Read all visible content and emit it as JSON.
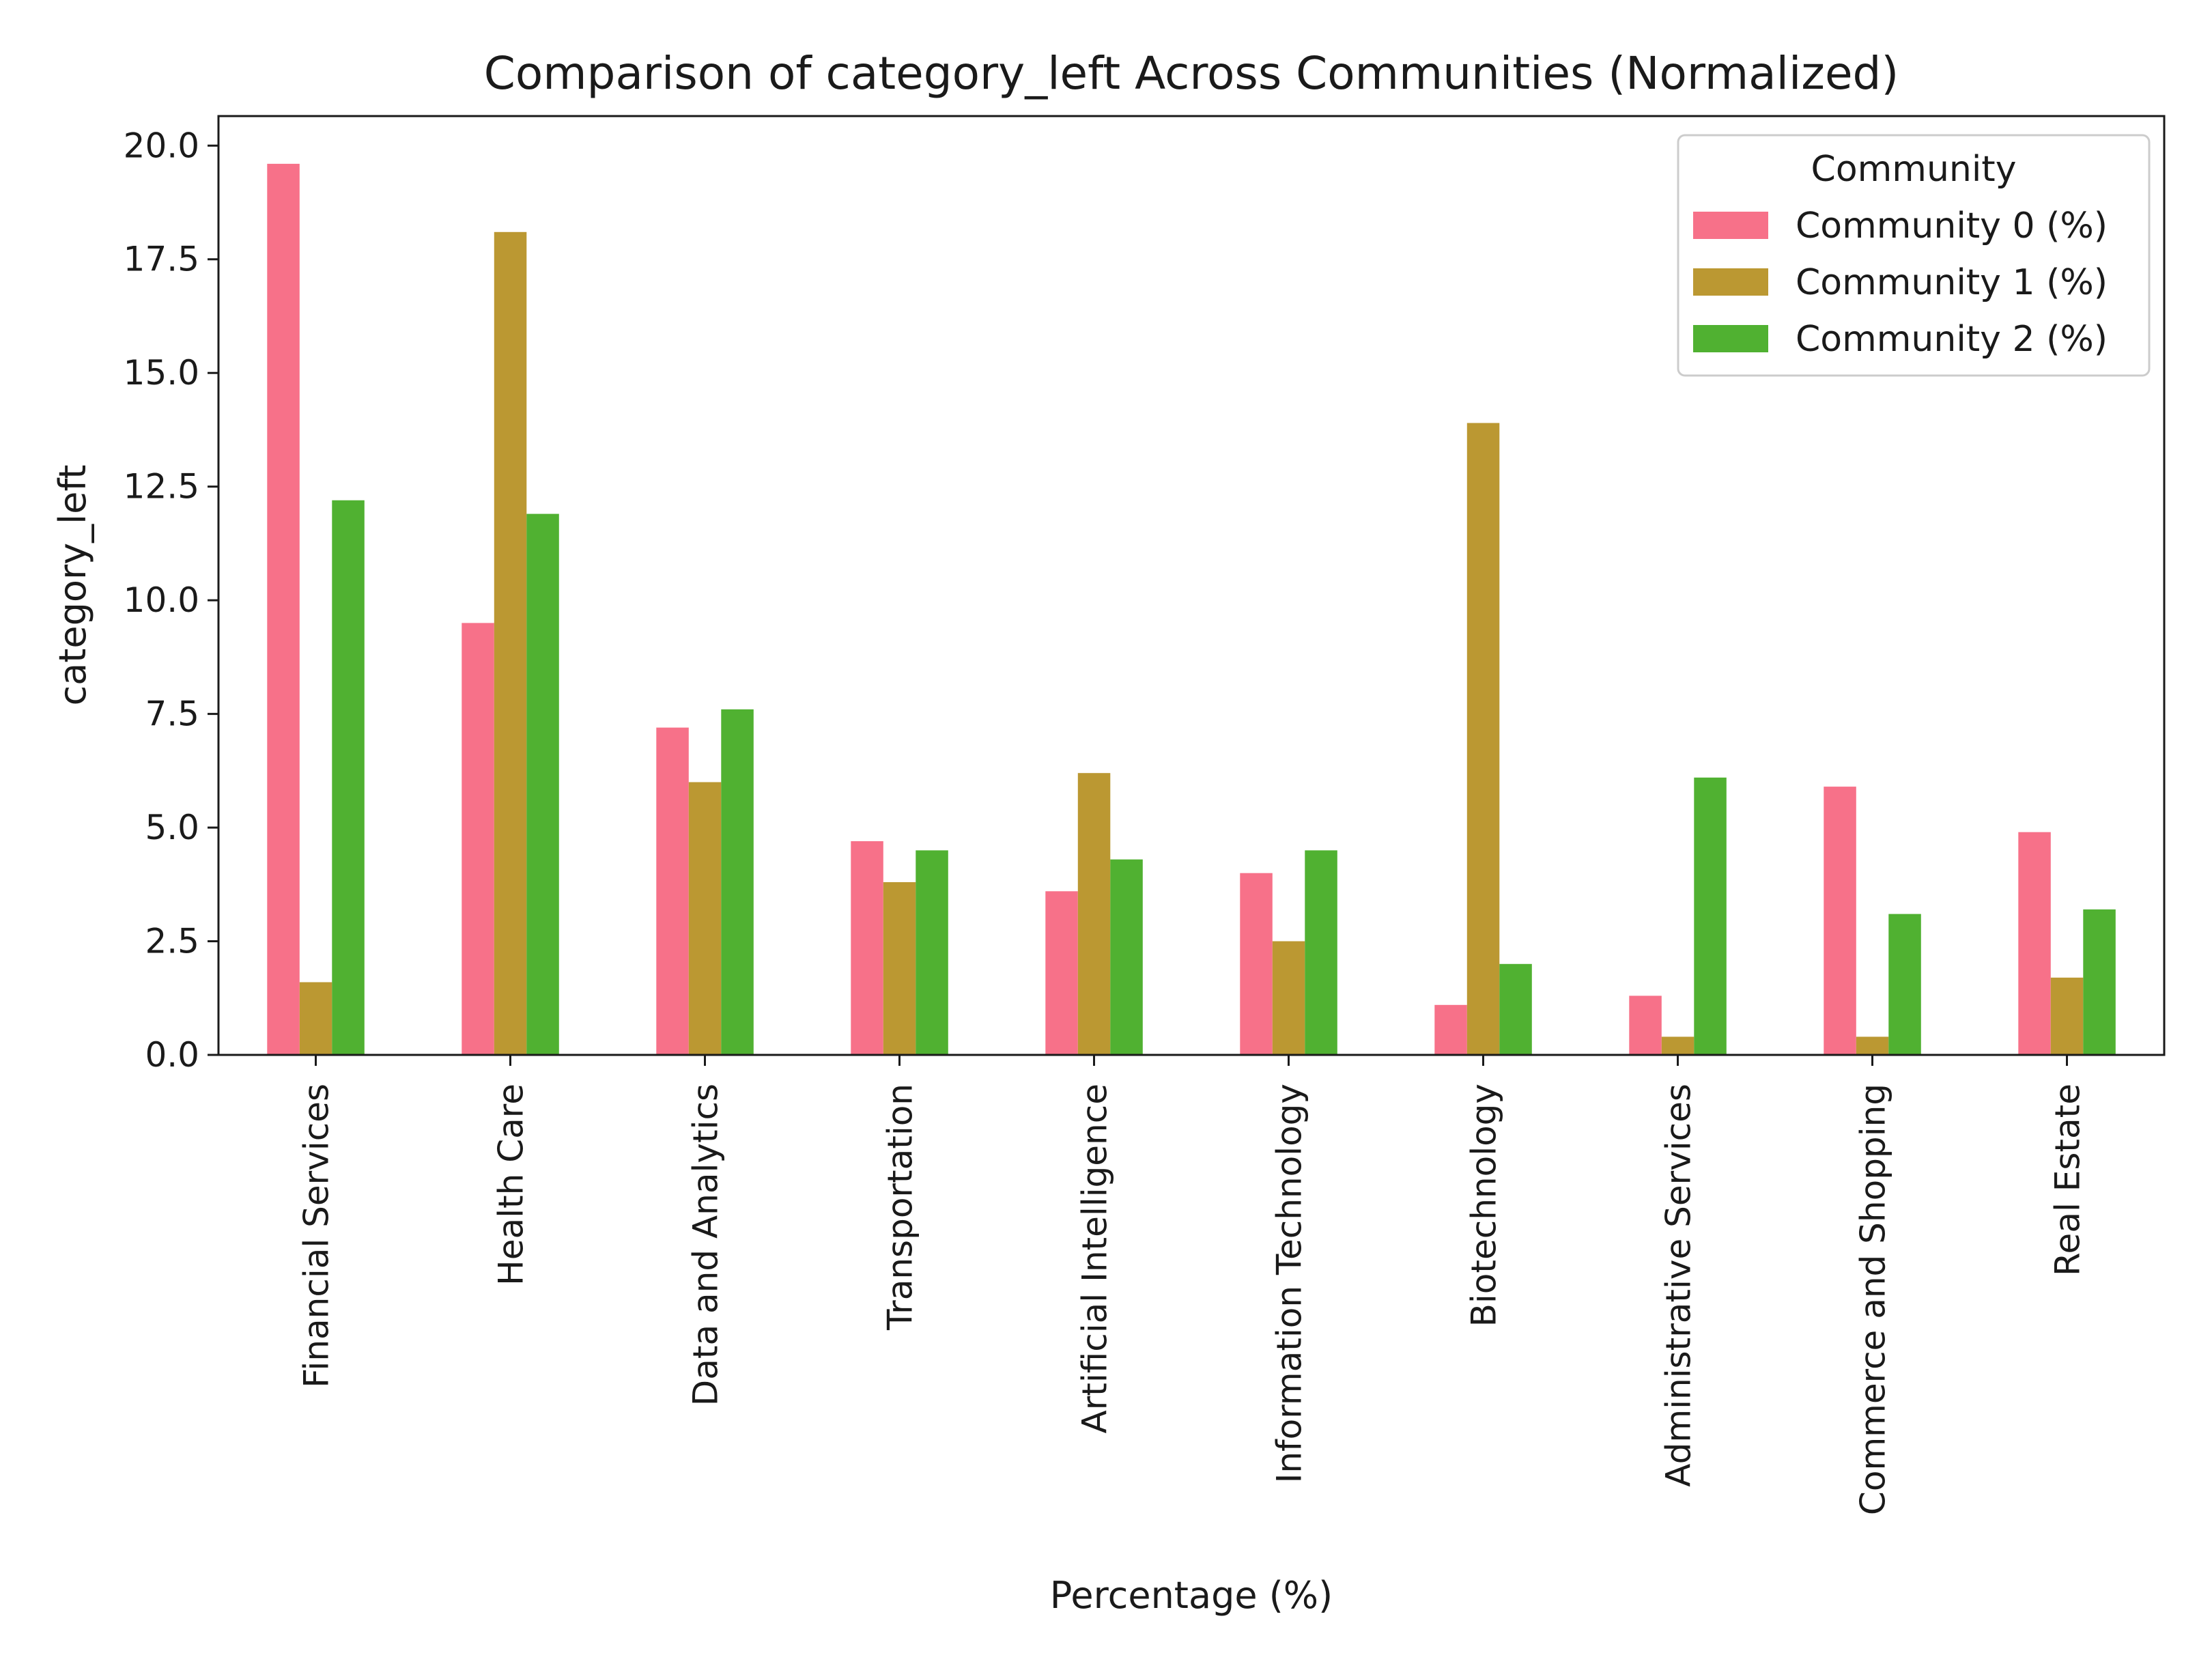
{
  "chart_data": {
    "type": "bar",
    "title": "Comparison of category_left Across Communities (Normalized)",
    "xlabel": "Percentage (%)",
    "ylabel": "category_left",
    "ylim": [
      0,
      20.65
    ],
    "yticks": [
      "0.0",
      "2.5",
      "5.0",
      "7.5",
      "10.0",
      "12.5",
      "15.0",
      "17.5",
      "20.0"
    ],
    "ytick_values": [
      0,
      2.5,
      5,
      7.5,
      10,
      12.5,
      15,
      17.5,
      20
    ],
    "grid": false,
    "legend_position": "top-right",
    "legend_title": "Community",
    "categories": [
      "Financial Services",
      "Health Care",
      "Data and Analytics",
      "Transportation",
      "Artificial Intelligence",
      "Information Technology",
      "Biotechnology",
      "Administrative Services",
      "Commerce and Shopping",
      "Real Estate"
    ],
    "series": [
      {
        "name": "Community 0 (%)",
        "color": "#f77189",
        "values": [
          19.6,
          9.5,
          7.2,
          4.7,
          3.6,
          4.0,
          1.1,
          1.3,
          5.9,
          4.9
        ]
      },
      {
        "name": "Community 1 (%)",
        "color": "#bb9832",
        "values": [
          1.6,
          18.1,
          6.0,
          3.8,
          6.2,
          2.5,
          13.9,
          0.4,
          0.4,
          1.7
        ]
      },
      {
        "name": "Community 2 (%)",
        "color": "#50b131",
        "values": [
          12.2,
          11.9,
          7.6,
          4.5,
          4.3,
          4.5,
          2.0,
          6.1,
          3.1,
          3.2
        ]
      }
    ]
  }
}
